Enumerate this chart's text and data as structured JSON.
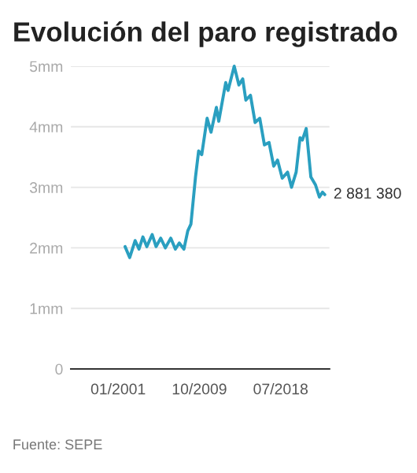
{
  "chart_data": {
    "type": "line",
    "title": "Evolución del paro registrado",
    "x": [
      "2001-10",
      "2002-04",
      "2002-11",
      "2003-04",
      "2003-09",
      "2004-02",
      "2004-09",
      "2005-02",
      "2005-08",
      "2006-02",
      "2006-09",
      "2007-03",
      "2007-08",
      "2008-02",
      "2008-07",
      "2008-11",
      "2009-05",
      "2009-09",
      "2010-01",
      "2010-08",
      "2011-01",
      "2011-08",
      "2011-11",
      "2012-08",
      "2012-11",
      "2013-07",
      "2014-01",
      "2014-06",
      "2014-10",
      "2015-04",
      "2015-10",
      "2016-04",
      "2016-10",
      "2017-04",
      "2017-10",
      "2018-03",
      "2018-09",
      "2019-04",
      "2019-09",
      "2020-03",
      "2020-08",
      "2020-11",
      "2021-04",
      "2021-10",
      "2022-04",
      "2022-09",
      "2023-01",
      "2023-04"
    ],
    "series": [
      {
        "color": "#2a9fc0",
        "values": [
          2.02,
          1.84,
          2.12,
          1.98,
          2.18,
          2.02,
          2.22,
          2.02,
          2.16,
          2.0,
          2.16,
          1.98,
          2.08,
          1.98,
          2.28,
          2.39,
          3.17,
          3.6,
          3.54,
          4.14,
          3.91,
          4.32,
          4.09,
          4.73,
          4.6,
          5.0,
          4.69,
          4.79,
          4.44,
          4.52,
          4.07,
          4.14,
          3.7,
          3.74,
          3.35,
          3.45,
          3.15,
          3.25,
          3.0,
          3.25,
          3.82,
          3.78,
          3.97,
          3.17,
          3.04,
          2.84,
          2.92,
          2.88
        ]
      }
    ],
    "xlim": [
      "1995-12",
      "2023-10"
    ],
    "xticks": [
      {
        "value": "2001-01",
        "label": "01/2001"
      },
      {
        "value": "2009-10",
        "label": "10/2009"
      },
      {
        "value": "2018-07",
        "label": "07/2018"
      }
    ],
    "ylim": [
      0,
      5
    ],
    "yticks": [
      0,
      {
        "value": 1,
        "label": "1mm"
      },
      {
        "value": 2,
        "label": "2mm"
      },
      {
        "value": 3,
        "label": "3mm"
      },
      {
        "value": 4,
        "label": "4mm"
      },
      {
        "value": 5,
        "label": "5mm"
      }
    ],
    "grid": "y",
    "marker": "none",
    "line_style": "solid",
    "annotations": [
      {
        "text": "2 881 380",
        "x": "2023-04",
        "y": 2.88
      },
      "Fuente: SEPE"
    ]
  }
}
